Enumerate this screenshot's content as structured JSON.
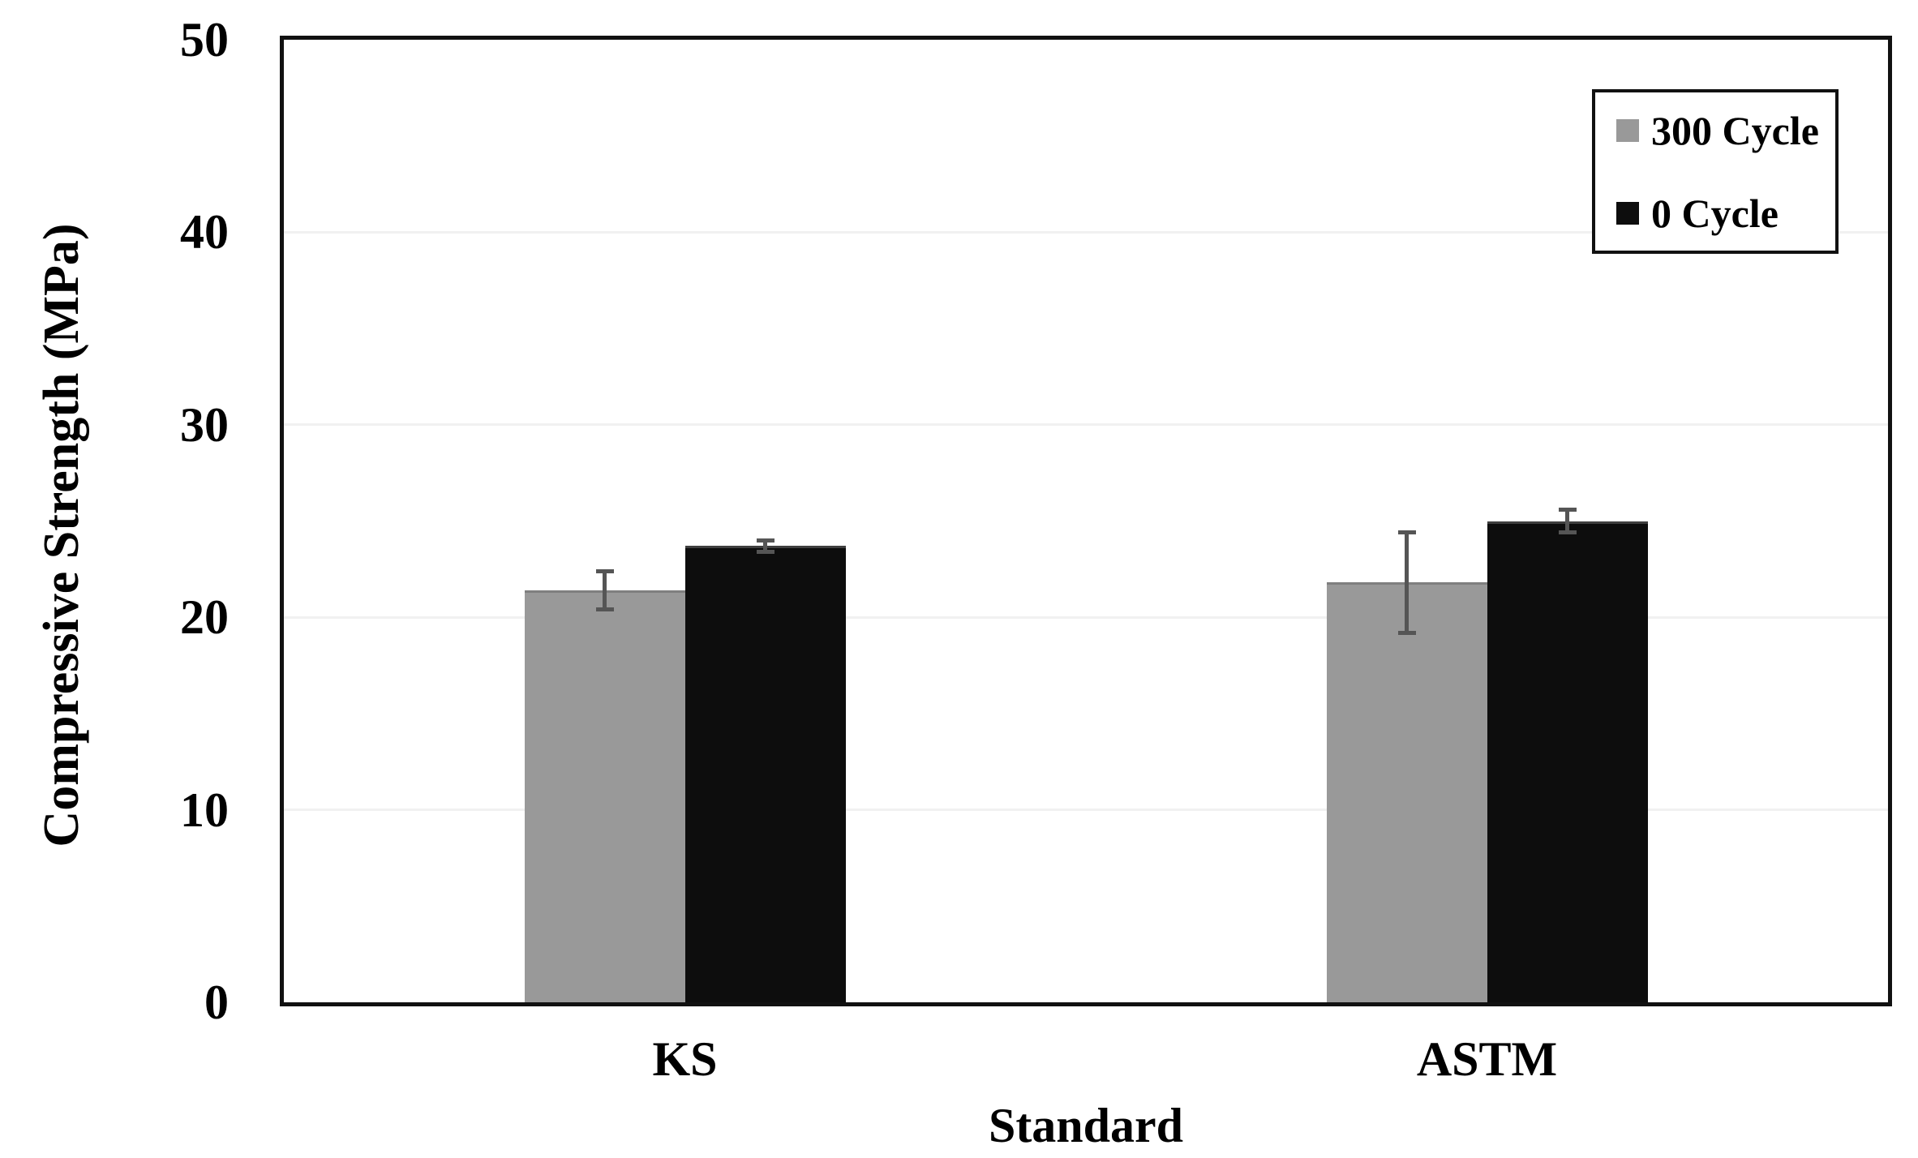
{
  "figure": {
    "background": "#ffffff"
  },
  "chart_data": {
    "type": "bar",
    "title": "",
    "xlabel": "Standard",
    "ylabel": "Compressive Strength (MPa)",
    "categories": [
      "KS",
      "ASTM"
    ],
    "series": [
      {
        "name": "300 Cycle",
        "color": "#999999",
        "border_color": "#7f7f7f",
        "values": [
          21.4,
          21.8
        ],
        "errors": [
          1.0,
          2.6
        ]
      },
      {
        "name": "0 Cycle",
        "color": "#0d0d0d",
        "border_color": "#3f3f3f",
        "values": [
          23.7,
          25.0
        ],
        "errors": [
          0.3,
          0.6
        ]
      }
    ],
    "ylim": [
      0,
      50
    ],
    "yticks": [
      0,
      10,
      20,
      30,
      40,
      50
    ],
    "grid": "horizontal",
    "legend_position": "top-right-inside"
  },
  "colors": {
    "plot_border": "#111111",
    "gridline": "#f1f1f1",
    "error_bar": "#555555",
    "legend_border": "#111111",
    "legend_bg": "#ffffff",
    "text": "#000000"
  }
}
